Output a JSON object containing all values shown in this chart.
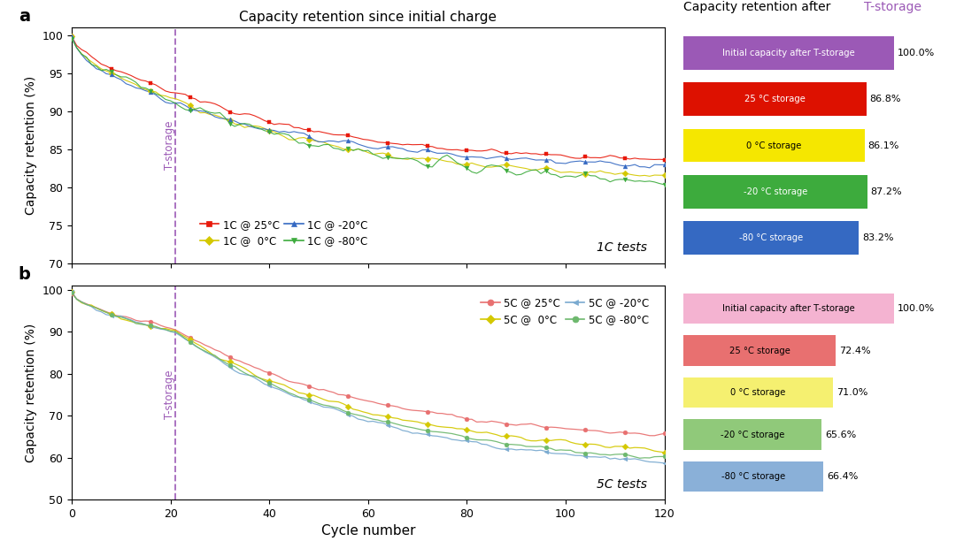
{
  "panel_a": {
    "title": "Capacity retention since initial charge",
    "ylabel": "Capacity retention (%)",
    "ylim": [
      70,
      101
    ],
    "yticks": [
      70,
      75,
      80,
      85,
      90,
      95,
      100
    ],
    "xlim": [
      0,
      120
    ],
    "xticks": [
      0,
      20,
      40,
      60,
      80,
      100,
      120
    ],
    "vline_x": 21,
    "test_label": "1C tests",
    "series_a": [
      {
        "label": "1C @ 25°C",
        "color": "#e8190b",
        "marker": "s",
        "pre_end": 92.5,
        "post_end": 83.5,
        "noise": 0.25
      },
      {
        "label": "1C @  0°C",
        "color": "#d4c800",
        "marker": "D",
        "pre_end": 91.5,
        "post_end": 81.5,
        "noise": 0.3
      },
      {
        "label": "1C @ -20°C",
        "color": "#3569c2",
        "marker": "^",
        "pre_end": 91.0,
        "post_end": 83.0,
        "noise": 0.3
      },
      {
        "label": "1C @ -80°C",
        "color": "#3dab3d",
        "marker": "v",
        "pre_end": 91.5,
        "post_end": 81.0,
        "noise": 0.55
      }
    ]
  },
  "panel_b": {
    "ylabel": "Capacity retention (%)",
    "xlabel": "Cycle number",
    "ylim": [
      50,
      101
    ],
    "yticks": [
      50,
      60,
      70,
      80,
      90,
      100
    ],
    "xlim": [
      0,
      120
    ],
    "xticks": [
      0,
      20,
      40,
      60,
      80,
      100,
      120
    ],
    "vline_x": 21,
    "test_label": "5C tests",
    "series_b": [
      {
        "label": "5C @ 25°C",
        "color": "#e87070",
        "marker": "o",
        "pre_end": 90.5,
        "post_end": 65.5,
        "noise": 0.3
      },
      {
        "label": "5C @  0°C",
        "color": "#d4c800",
        "marker": "D",
        "pre_end": 90.0,
        "post_end": 62.0,
        "noise": 0.35
      },
      {
        "label": "5C @ -20°C",
        "color": "#7aaad0",
        "marker": "<",
        "pre_end": 90.0,
        "post_end": 59.0,
        "noise": 0.35
      },
      {
        "label": "5C @ -80°C",
        "color": "#6db86d",
        "marker": "o",
        "pre_end": 90.0,
        "post_end": 60.0,
        "noise": 0.35
      }
    ]
  },
  "bar_a": {
    "title_plain": "Capacity retention after ",
    "title_colored": "T-storage",
    "title_color": "#9b59b6",
    "bars": [
      {
        "label": "Initial capacity after T-storage",
        "value": 100.0,
        "color": "#9b59b6",
        "text_color": "white"
      },
      {
        "label": "25 °C storage",
        "value": 86.8,
        "color": "#dd1100",
        "text_color": "white"
      },
      {
        "label": "0 °C storage",
        "value": 86.1,
        "color": "#f5e700",
        "text_color": "black"
      },
      {
        "label": "-20 °C storage",
        "value": 87.2,
        "color": "#3dab3d",
        "text_color": "white"
      },
      {
        "label": "-80 °C storage",
        "value": 83.2,
        "color": "#3569c2",
        "text_color": "white"
      }
    ]
  },
  "bar_b": {
    "bars": [
      {
        "label": "Initial capacity after T-storage",
        "value": 100.0,
        "color": "#f4b3d1",
        "text_color": "black"
      },
      {
        "label": "25 °C storage",
        "value": 72.4,
        "color": "#e87070",
        "text_color": "black"
      },
      {
        "label": "0 °C storage",
        "value": 71.0,
        "color": "#f5f070",
        "text_color": "black"
      },
      {
        "label": "-20 °C storage",
        "value": 65.6,
        "color": "#90c97a",
        "text_color": "black"
      },
      {
        "label": "-80 °C storage",
        "value": 66.4,
        "color": "#8ab0d8",
        "text_color": "black"
      }
    ]
  },
  "vline_color": "#9b59b6",
  "bg_color": "white"
}
